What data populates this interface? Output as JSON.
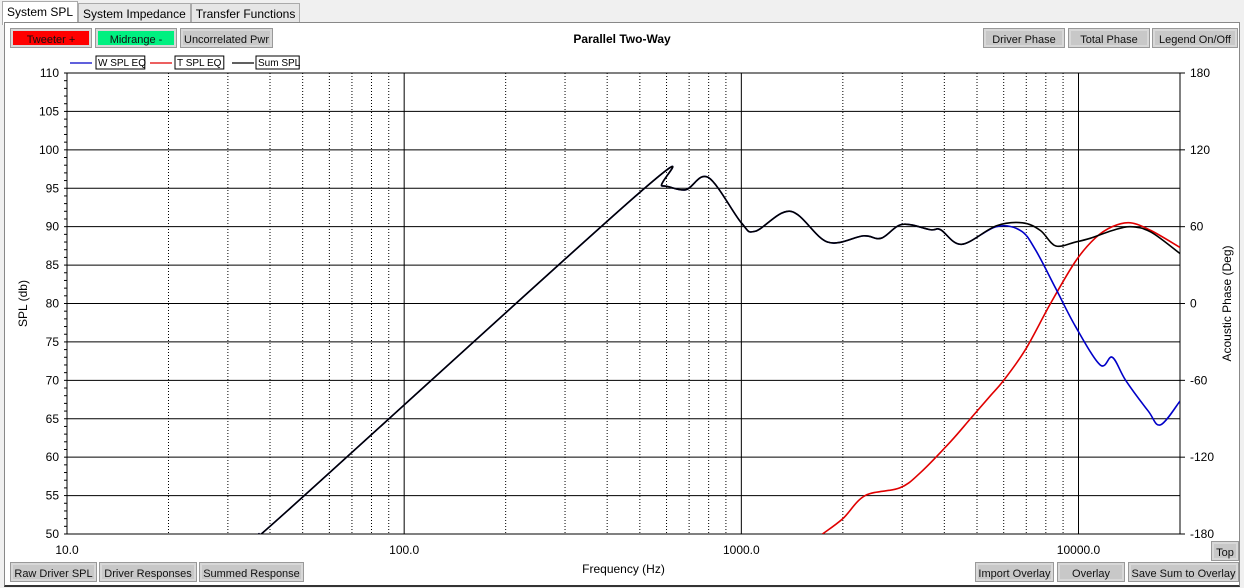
{
  "tabs": [
    {
      "label": "System SPL",
      "active": true
    },
    {
      "label": "System Impedance"
    },
    {
      "label": "Transfer Functions"
    }
  ],
  "top_buttons": {
    "tweeter": "Tweeter +",
    "midrange": "Midrange -",
    "uncorrelated": "Uncorrelated Pwr",
    "driver_phase": "Driver Phase",
    "total_phase": "Total Phase",
    "legend": "Legend On/Off"
  },
  "colors": {
    "tweeter_button": "#ff0000",
    "midrange_button": "#00ff80"
  },
  "bottom_buttons": {
    "raw": "Raw Driver SPL",
    "driver": "Driver Responses",
    "summed": "Summed Response",
    "import": "Import Overlay",
    "overlay": "Overlay",
    "save": "Save Sum to Overlay",
    "top": "Top"
  },
  "chart_data": {
    "type": "line",
    "title": "Parallel Two-Way",
    "xlabel": "Frequency (Hz)",
    "ylabel": "SPL (db)",
    "y2label": "Acoustic Phase (Deg)",
    "xscale": "log",
    "xlim": [
      10,
      20000
    ],
    "ylim": [
      50,
      110
    ],
    "y2lim": [
      -180,
      180
    ],
    "xticks": [
      "10.0",
      "100.0",
      "1000.0",
      "10000.0"
    ],
    "yticks": [
      50,
      55,
      60,
      65,
      70,
      75,
      80,
      85,
      90,
      95,
      100,
      105,
      110
    ],
    "y2ticks": [
      -180,
      -120,
      -60,
      0,
      60,
      120,
      180
    ],
    "grid": true,
    "legend_placement": "top-left",
    "series": [
      {
        "name": "W SPL EQ",
        "color": "#0000c8",
        "x": [
          37,
          45,
          501,
          583,
          683,
          798,
          1000,
          1100,
          1400,
          1800,
          2300,
          2600,
          3000,
          3640,
          3900,
          4500,
          5700,
          6730,
          7450,
          8550,
          9800,
          11600,
          12600,
          13800,
          16100,
          17500,
          20000
        ],
        "y": [
          50,
          53,
          94.5,
          95.3,
          94.8,
          96.4,
          90.5,
          89.4,
          92,
          88,
          88.8,
          88.5,
          90.3,
          89.6,
          89.6,
          87.7,
          90,
          89.5,
          87,
          82,
          77,
          72,
          73,
          70,
          66,
          64.2,
          67.3
        ]
      },
      {
        "name": "T SPL EQ",
        "color": "#e00000",
        "x": [
          1740,
          2000,
          2330,
          2950,
          3400,
          4170,
          4780,
          5480,
          6000,
          6960,
          8260,
          9800,
          11200,
          12600,
          14250,
          16400,
          20000
        ],
        "y": [
          50,
          52,
          55,
          56,
          58,
          62,
          65,
          68,
          70,
          74,
          80,
          85.5,
          88.5,
          90,
          90.5,
          89.5,
          87.3
        ]
      },
      {
        "name": "Sum SPL",
        "color": "#000000",
        "x": [
          37,
          45,
          501,
          583,
          683,
          798,
          1000,
          1100,
          1400,
          1800,
          2300,
          2600,
          3000,
          3640,
          3900,
          4500,
          5700,
          6820,
          7710,
          8550,
          9800,
          10860,
          12600,
          14250,
          16400,
          20000
        ],
        "y": [
          50,
          53,
          94.5,
          95.3,
          94.8,
          96.4,
          90.5,
          89.4,
          92,
          88,
          88.8,
          88.5,
          90.3,
          89.6,
          89.6,
          87.7,
          90.1,
          90.5,
          89.5,
          87.5,
          88,
          88.5,
          89.5,
          90,
          89.3,
          86.5
        ]
      }
    ]
  }
}
